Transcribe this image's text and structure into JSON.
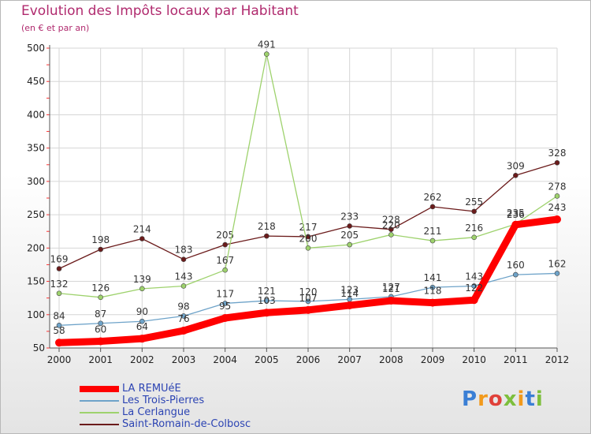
{
  "chart_data": {
    "type": "line",
    "title": "Evolution des Impôts locaux par Habitant",
    "subtitle": "(en € et par an)",
    "xlabel": "",
    "ylabel": "",
    "ylim": [
      50,
      500
    ],
    "yticks": [
      50,
      100,
      150,
      200,
      250,
      300,
      350,
      400,
      450,
      500
    ],
    "categories": [
      "2000",
      "2001",
      "2002",
      "2003",
      "2004",
      "2005",
      "2006",
      "2007",
      "2008",
      "2009",
      "2010",
      "2011",
      "2012"
    ],
    "series": [
      {
        "name": "Saint-Romain-de-Colbosc",
        "color": "#6b1b1b",
        "width": "thin",
        "labels": "above",
        "values": [
          169,
          198,
          214,
          183,
          205,
          218,
          217,
          233,
          228,
          262,
          255,
          309,
          328
        ]
      },
      {
        "name": "La Cerlangue",
        "color": "#9ed26d",
        "width": "thin",
        "labels": "above",
        "values": [
          132,
          126,
          139,
          143,
          167,
          491,
          200,
          205,
          220,
          211,
          216,
          236,
          278
        ]
      },
      {
        "name": "Les Trois-Pierres",
        "color": "#6ea3c9",
        "width": "thin",
        "labels": "above",
        "values": [
          84,
          87,
          90,
          98,
          117,
          121,
          120,
          123,
          127,
          141,
          143,
          160,
          162
        ]
      },
      {
        "name": "LA REMUéE",
        "color": "#ff0000",
        "width": "thick",
        "labels": "above",
        "values": [
          58,
          60,
          64,
          76,
          95,
          103,
          107,
          114,
          121,
          118,
          122,
          235,
          243
        ]
      }
    ],
    "legend": {
      "position": "bottom-left",
      "items": [
        {
          "label": "LA REMUéE",
          "color": "#ff0000",
          "thick": true
        },
        {
          "label": "Les Trois-Pierres",
          "color": "#6ea3c9",
          "thick": false
        },
        {
          "label": "La Cerlangue",
          "color": "#9ed26d",
          "thick": false
        },
        {
          "label": "Saint-Romain-de-Colbosc",
          "color": "#6b1b1b",
          "thick": false
        }
      ]
    }
  },
  "logo": {
    "letters": [
      "P",
      "r",
      "o",
      "x",
      "i",
      "t",
      "i"
    ],
    "colors": [
      "#3a7fd5",
      "#f29a1c",
      "#e0413a",
      "#7dbf3c",
      "#f29a1c",
      "#3a7fd5",
      "#7dbf3c"
    ]
  }
}
